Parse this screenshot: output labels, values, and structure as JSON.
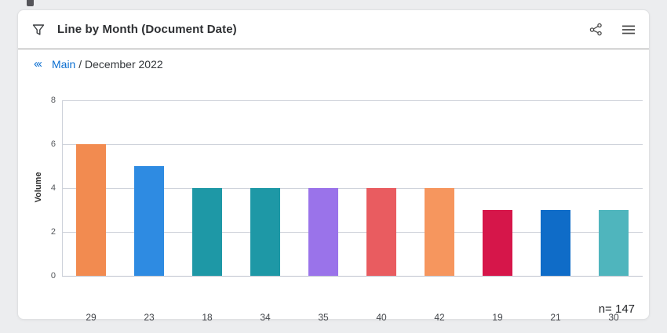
{
  "widget": {
    "title": "Line by Month (Document Date)",
    "breadcrumb": {
      "collapse_glyph": "‹‹‹",
      "root": "Main",
      "separator": " / ",
      "current": "December 2022"
    },
    "footnote": "n= 147"
  },
  "colors": {
    "link_blue": "#0a6ed1",
    "title_text": "#2e3033",
    "gridline": "#ced2da",
    "card_bg": "#ffffff",
    "page_bg": "#ecedef"
  },
  "chart_data": {
    "type": "bar",
    "title": "Line by Month (Document Date)",
    "subtitle": "Main / December 2022",
    "categories": [
      "29",
      "23",
      "18",
      "34",
      "35",
      "40",
      "42",
      "19",
      "21",
      "30"
    ],
    "values": [
      6,
      5,
      4,
      4,
      4,
      4,
      4,
      3,
      3,
      3
    ],
    "bar_colors": [
      "#F28B50",
      "#2E8BE2",
      "#1E98A6",
      "#1E98A6",
      "#9A73EA",
      "#E95C60",
      "#F6965E",
      "#D6164A",
      "#0F6CC8",
      "#4FB5BD"
    ],
    "xlabel": "",
    "ylabel": "Volume",
    "yticks": [
      0,
      2,
      4,
      6,
      8
    ],
    "ylim": [
      0,
      8
    ],
    "grid": true,
    "legend": false,
    "annotation": "n= 147"
  }
}
